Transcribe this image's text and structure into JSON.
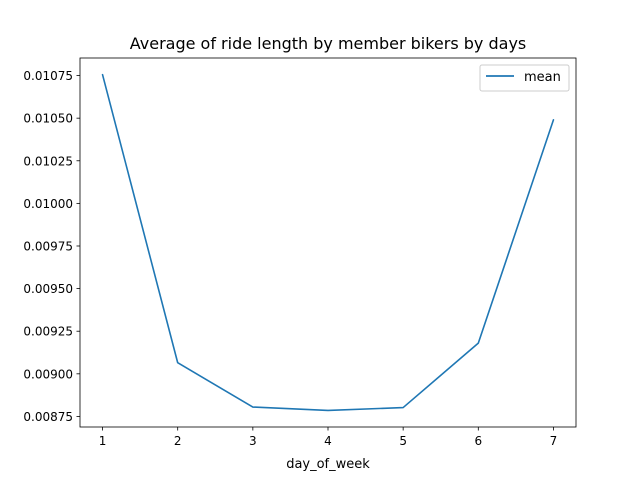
{
  "chart_data": {
    "type": "line",
    "title": "Average of ride length by member bikers by days",
    "xlabel": "day_of_week",
    "ylabel": "",
    "x": [
      1,
      2,
      3,
      4,
      5,
      6,
      7
    ],
    "series": [
      {
        "name": "mean",
        "color": "#1f77b4",
        "values": [
          0.010755,
          0.009065,
          0.008805,
          0.008785,
          0.008802,
          0.00918,
          0.01049
        ]
      }
    ],
    "xlim": [
      0.7,
      7.3
    ],
    "ylim": [
      0.008688,
      0.010853
    ],
    "xticks": [
      1,
      2,
      3,
      4,
      5,
      6,
      7
    ],
    "xtick_labels": [
      "1",
      "2",
      "3",
      "4",
      "5",
      "6",
      "7"
    ],
    "yticks": [
      0.00875,
      0.009,
      0.00925,
      0.0095,
      0.00975,
      0.01,
      0.01025,
      0.0105,
      0.01075
    ],
    "ytick_labels": [
      "0.00875",
      "0.00900",
      "0.00925",
      "0.00950",
      "0.00975",
      "0.01000",
      "0.01025",
      "0.01050",
      "0.01075"
    ],
    "grid": false,
    "legend_position": "top-right"
  }
}
